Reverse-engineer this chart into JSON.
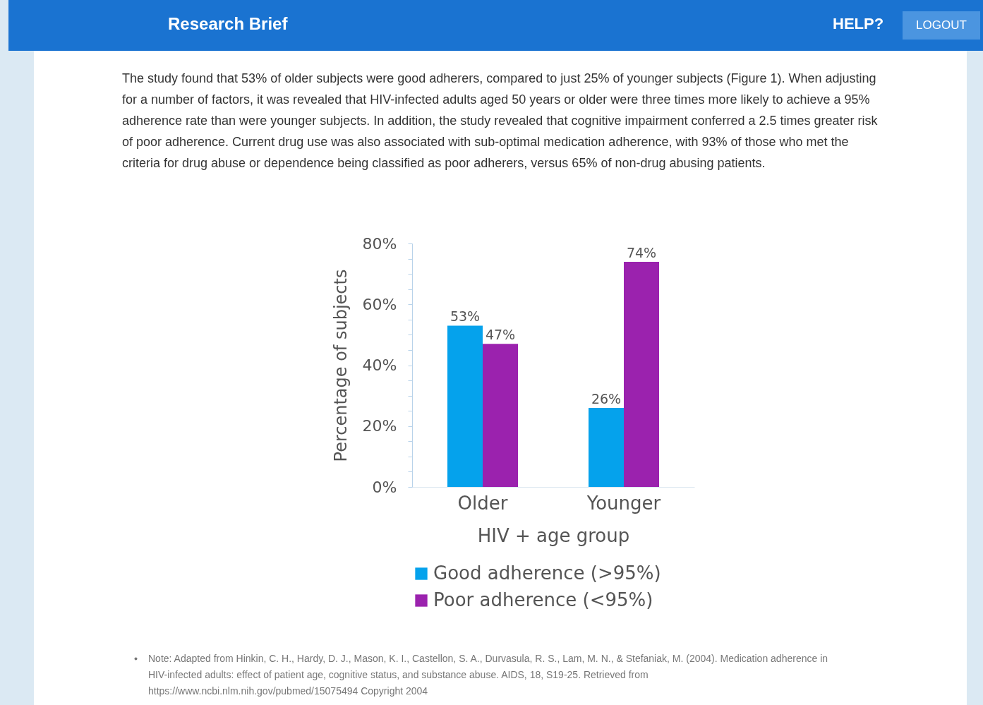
{
  "chart_data": {
    "type": "bar",
    "title": "Research Brief",
    "annotations": [
      "HELP?",
      "LOGOUT",
      "The study found that 53% of older subjects were good adherers, compared to just 25% of younger subjects (Figure 1). When adjusting for a number of factors, it was revealed that HIV-infected adults aged 50 years or older were three times more likely to achieve a 95% adherence rate than were younger subjects. In addition, the study revealed that cognitive impairment conferred a 2.5 times greater risk of poor adherence. Current drug use was also associated with sub-optimal medication adherence, with 93% of those who met the criteria for drug abuse or dependence being classified as poor adherers, versus 65% of non-drug abusing patients.",
      "Note: Adapted from Hinkin, C. H., Hardy, D. J., Mason, K. I., Castellon, S. A., Durvasula, R. S., Lam, M. N., & Stefaniak, M. (2004). Medication adherence in HIV-infected adults: effect of patient age, cognitive status, and substance abuse. AIDS, 18, S19-25. Retrieved from https://www.ncbi.nlm.nih.gov/pubmed/15075494 Copyright 2004"
    ],
    "xlabel": "HIV + age group",
    "ylabel": "Percentage of subjects",
    "categories": [
      "Older",
      "Younger"
    ],
    "series": [
      {
        "name": "Good adherence (>95%)",
        "color": "#05a2ec",
        "values": [
          53,
          26
        ],
        "value_labels": [
          "53%",
          "26%"
        ]
      },
      {
        "name": "Poor adherence (<95%)",
        "color": "#9b22ae",
        "values": [
          47,
          74
        ],
        "value_labels": [
          "47%",
          "74%"
        ]
      }
    ],
    "ylim": [
      0,
      80
    ],
    "yticks": [
      {
        "value": 0,
        "label": "0%"
      },
      {
        "value": 5,
        "label": null
      },
      {
        "value": 10,
        "label": null
      },
      {
        "value": 15,
        "label": null
      },
      {
        "value": 20,
        "label": "20%"
      },
      {
        "value": 25,
        "label": null
      },
      {
        "value": 30,
        "label": null
      },
      {
        "value": 35,
        "label": null
      },
      {
        "value": 40,
        "label": "40%"
      },
      {
        "value": 45,
        "label": null
      },
      {
        "value": 50,
        "label": null
      },
      {
        "value": 55,
        "label": null
      },
      {
        "value": 60,
        "label": "60%"
      },
      {
        "value": 65,
        "label": null
      },
      {
        "value": 70,
        "label": null
      },
      {
        "value": 75,
        "label": null
      },
      {
        "value": 80,
        "label": "80%"
      }
    ],
    "legend": "bottom"
  }
}
